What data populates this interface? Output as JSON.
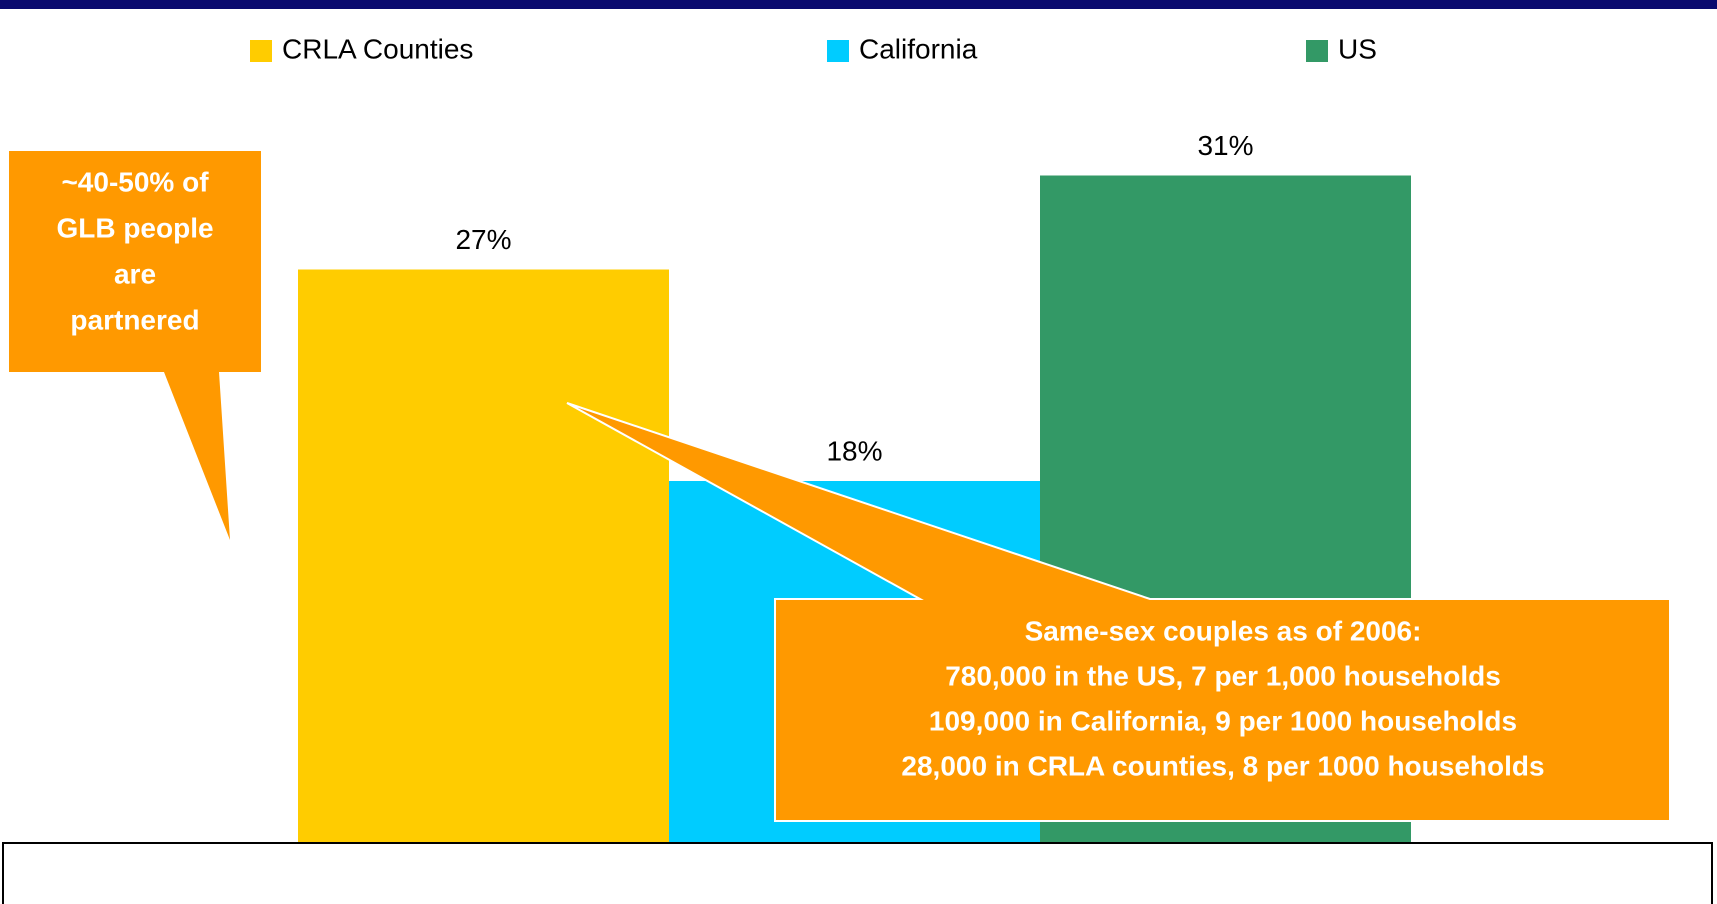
{
  "chart_data": {
    "type": "bar",
    "series": [
      {
        "name": "CRLA Counties",
        "color": "#ffcc00",
        "values": [
          27
        ],
        "value_labels": [
          "27%"
        ]
      },
      {
        "name": "California",
        "color": "#00ccff",
        "values": [
          18
        ],
        "value_labels": [
          "18%"
        ]
      },
      {
        "name": "US",
        "color": "#339966",
        "values": [
          31
        ],
        "value_labels": [
          "31%"
        ]
      }
    ],
    "annotations": [
      {
        "lines": [
          "~40-50% of",
          "GLB people",
          "are",
          "partnered"
        ]
      },
      {
        "lines": [
          "Same-sex couples as of 2006:",
          "780,000 in the US, 7 per 1,000 households",
          "109,000 in California, 9 per 1000 households",
          "28,000 in CRLA counties, 8 per 1000 households"
        ]
      }
    ],
    "legend": "top"
  }
}
